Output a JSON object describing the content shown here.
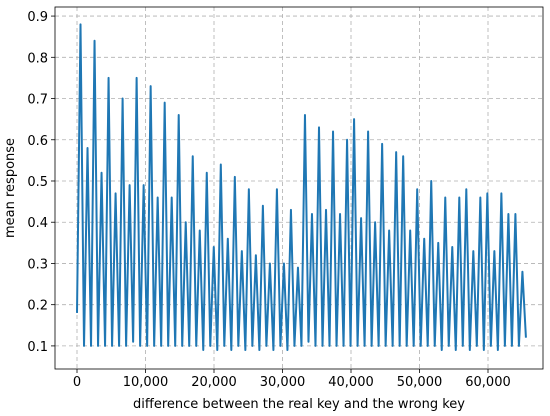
{
  "chart_data": {
    "type": "line",
    "x_label": "difference between the real key and the wrong key",
    "y_label": "mean response",
    "xlim": [
      -3212,
      68029
    ],
    "ylim": [
      0.044,
      0.922
    ],
    "xticks": [
      0,
      {
        "value": 10000,
        "label": "10,000"
      },
      {
        "value": 20000,
        "label": "20,000"
      },
      {
        "value": 30000,
        "label": "30,000"
      },
      {
        "value": 40000,
        "label": "40,000"
      },
      {
        "value": 50000,
        "label": "50,000"
      },
      {
        "value": 60000,
        "label": "60,000"
      }
    ],
    "yticks": [
      0.1,
      0.2,
      0.3,
      0.4,
      0.5,
      0.6,
      0.7,
      0.8,
      0.9
    ],
    "grid": true,
    "series": [
      {
        "color": "#1f77b4",
        "x": [
          0,
          512,
          1024,
          1536,
          2048,
          2560,
          3072,
          3584,
          4096,
          4608,
          5120,
          5632,
          6144,
          6656,
          7168,
          7680,
          8192,
          8704,
          9216,
          9728,
          10240,
          10752,
          11264,
          11776,
          12288,
          12800,
          13312,
          13824,
          14336,
          14848,
          15360,
          15872,
          16384,
          16896,
          17408,
          17920,
          18432,
          18944,
          19456,
          19968,
          20480,
          20992,
          21504,
          22016,
          22528,
          23040,
          23552,
          24064,
          24576,
          25088,
          25600,
          26112,
          26624,
          27136,
          27648,
          28160,
          28672,
          29184,
          29696,
          30208,
          30720,
          31232,
          31744,
          32256,
          32768,
          33280,
          33792,
          34304,
          34816,
          35328,
          35840,
          36352,
          36864,
          37376,
          37888,
          38400,
          38912,
          39424,
          39936,
          40448,
          40960,
          41472,
          41984,
          42496,
          43008,
          43520,
          44032,
          44544,
          45056,
          45568,
          46080,
          46592,
          47104,
          47616,
          48128,
          48640,
          49152,
          49664,
          50176,
          50688,
          51200,
          51712,
          52224,
          52736,
          53248,
          53760,
          54272,
          54784,
          55296,
          55808,
          56320,
          56832,
          57344,
          57856,
          58368,
          58880,
          59392,
          59904,
          60416,
          60928,
          61440,
          61952,
          62464,
          62976,
          63488,
          64000,
          64512,
          65024,
          65535
        ],
        "values": [
          0.18,
          0.88,
          0.1,
          0.58,
          0.1,
          0.84,
          0.1,
          0.52,
          0.1,
          0.75,
          0.1,
          0.47,
          0.1,
          0.7,
          0.1,
          0.49,
          0.11,
          0.75,
          0.1,
          0.49,
          0.1,
          0.73,
          0.1,
          0.46,
          0.1,
          0.69,
          0.1,
          0.46,
          0.1,
          0.66,
          0.1,
          0.4,
          0.1,
          0.56,
          0.1,
          0.38,
          0.09,
          0.52,
          0.1,
          0.34,
          0.09,
          0.54,
          0.1,
          0.36,
          0.09,
          0.51,
          0.1,
          0.33,
          0.09,
          0.48,
          0.1,
          0.32,
          0.09,
          0.44,
          0.1,
          0.3,
          0.09,
          0.48,
          0.1,
          0.3,
          0.09,
          0.43,
          0.1,
          0.29,
          0.1,
          0.66,
          0.11,
          0.42,
          0.1,
          0.63,
          0.1,
          0.43,
          0.1,
          0.62,
          0.1,
          0.42,
          0.1,
          0.6,
          0.1,
          0.65,
          0.1,
          0.41,
          0.1,
          0.62,
          0.1,
          0.4,
          0.1,
          0.59,
          0.1,
          0.38,
          0.1,
          0.57,
          0.1,
          0.56,
          0.1,
          0.38,
          0.1,
          0.48,
          0.1,
          0.36,
          0.1,
          0.5,
          0.1,
          0.35,
          0.09,
          0.46,
          0.1,
          0.34,
          0.09,
          0.46,
          0.1,
          0.48,
          0.09,
          0.33,
          0.1,
          0.46,
          0.09,
          0.47,
          0.1,
          0.33,
          0.09,
          0.47,
          0.1,
          0.42,
          0.1,
          0.42,
          0.1,
          0.28,
          0.12
        ]
      }
    ]
  }
}
